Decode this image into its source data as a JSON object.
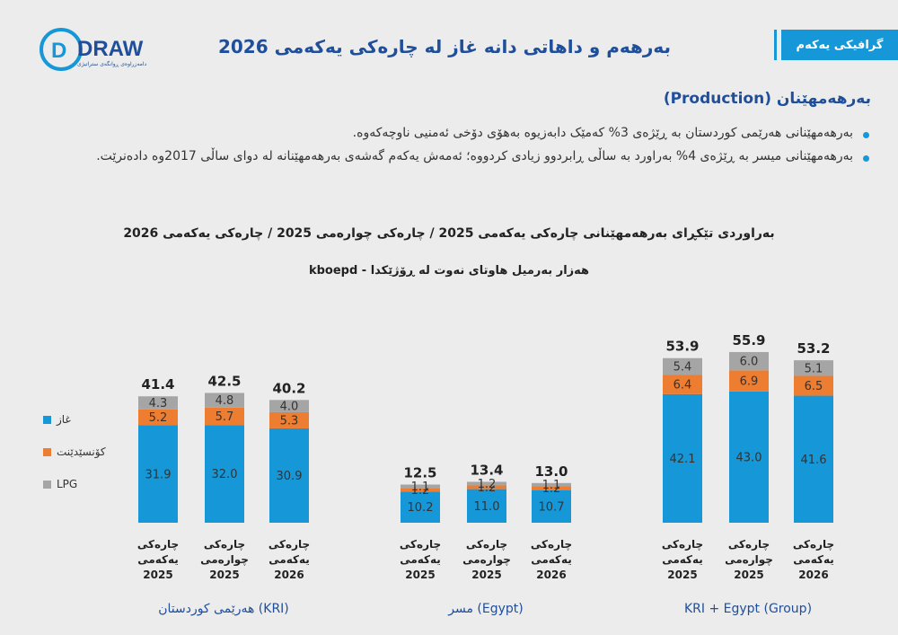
{
  "brand": {
    "name": "DRAW",
    "tagline": "دامەزراوەی ڕوانگەی ستراتیژی"
  },
  "header": {
    "title": "بەرهەم و داهاتی دانە غاز لە چارەکی یەکەمی 2026",
    "badge": "گرافیکی یەکەم"
  },
  "section": {
    "heading": "بەرهەمهێنان (Production)",
    "bullets": [
      "بەرهەمهێنانی هەرێمی کوردستان بە ڕێژەی 3% کەمێک دابەزیوە بەهۆی دۆخی ئەمنیی ناوچەکەوە.",
      "بەرهەمهێنانی میسر بە ڕێژەی 4% بەراورد بە ساڵی ڕابردوو زیادی کردووە؛ ئەمەش یەکەم گەشەی بەرهەمهێنانە لە دوای ساڵی 2017وە دادەنرێت."
    ]
  },
  "colors": {
    "gas": "#1597d8",
    "condensate": "#ed7d31",
    "lpg": "#a5a5a5",
    "accent": "#1f4e9a"
  },
  "chart_data": {
    "type": "bar",
    "stacked": true,
    "title": "بەراوردی تێکڕای بەرهەمهێنانی چارەکی یەکەمی 2025 / چارەکی چوارەمی 2025 /  چارەکی یەکەمی 2026",
    "subtitle": "هەزار بەرمیل هاوتای نەوت لە ڕۆژێکدا - kboepd",
    "legend_position": "left",
    "series": [
      {
        "name": "غاز",
        "color": "#1597d8",
        "values": [
          31.9,
          32.0,
          30.9,
          10.2,
          11.0,
          10.7,
          42.1,
          43.0,
          41.6
        ]
      },
      {
        "name": "کۆنسێدێنت",
        "color": "#ed7d31",
        "values": [
          5.2,
          5.7,
          5.3,
          1.2,
          1.2,
          1.2,
          6.4,
          6.9,
          6.5
        ]
      },
      {
        "name": "LPG",
        "color": "#a5a5a5",
        "values": [
          4.3,
          4.8,
          4.0,
          1.1,
          1.2,
          1.1,
          5.4,
          6.0,
          5.1
        ]
      }
    ],
    "totals": [
      41.4,
      42.5,
      40.2,
      12.5,
      13.4,
      13.0,
      53.9,
      55.9,
      53.2
    ],
    "groups": [
      {
        "label": "هەرێمی کوردستان (KRI)",
        "categories": [
          [
            "چارەکی",
            "یەکەمی",
            "2025"
          ],
          [
            "چارەکی",
            "چوارەمی",
            "2025"
          ],
          [
            "چارەکی",
            "یەکەمی",
            "2026"
          ]
        ]
      },
      {
        "label": "مسر (Egypt)",
        "categories": [
          [
            "چارەکی",
            "یەکەمی",
            "2025"
          ],
          [
            "چارەکی",
            "چوارەمی",
            "2025"
          ],
          [
            "چارەکی",
            "یەکەمی",
            "2026"
          ]
        ]
      },
      {
        "label": "KRI + Egypt (Group)",
        "categories": [
          [
            "چارەکی",
            "یەکەمی",
            "2025"
          ],
          [
            "چارەکی",
            "چوارەمی",
            "2025"
          ],
          [
            "چارەکی",
            "یەکەمی",
            "2026"
          ]
        ]
      }
    ]
  }
}
